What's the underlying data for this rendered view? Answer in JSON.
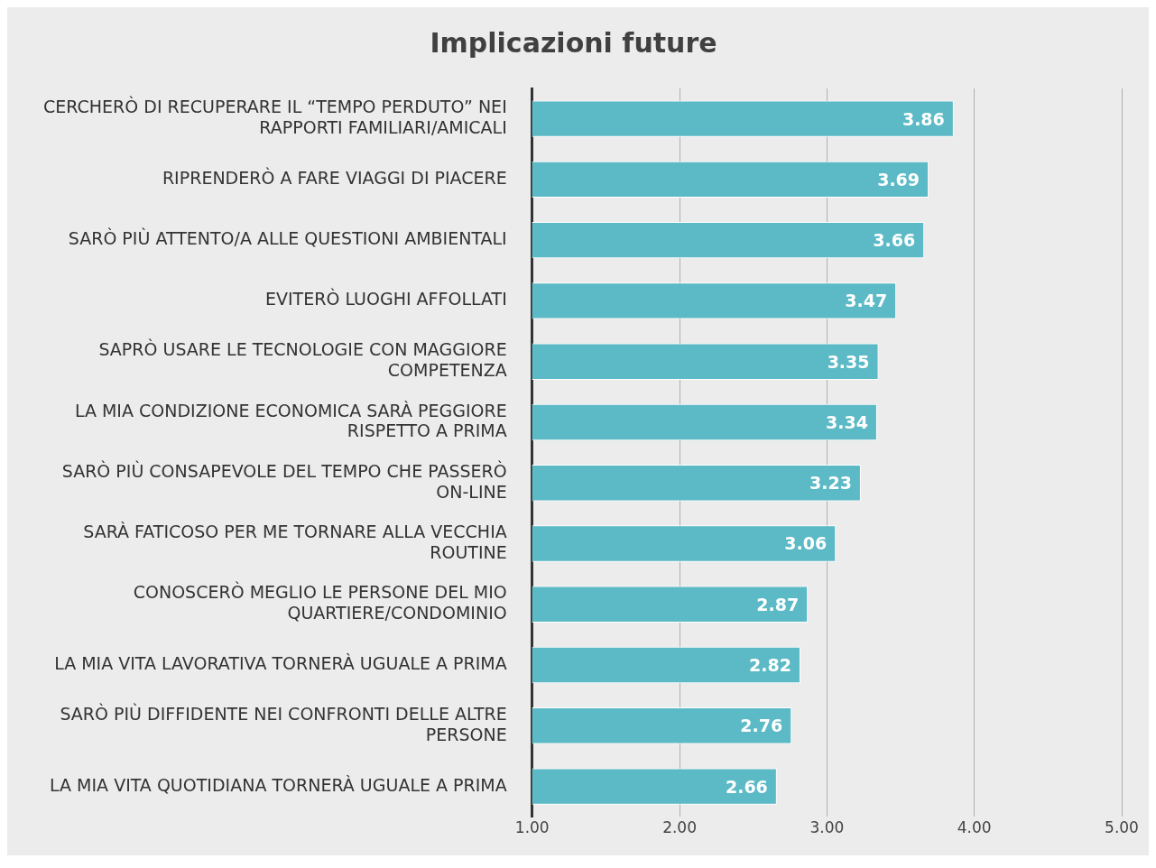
{
  "chart_data": {
    "type": "bar",
    "orientation": "horizontal",
    "title": "Implicazioni future",
    "categories": [
      "CERCHERÒ DI RECUPERARE IL “TEMPO PERDUTO” NEI RAPPORTI FAMILIARI/AMICALI",
      "RIPRENDERÒ A FARE VIAGGI DI PIACERE",
      "SARÒ PIÙ ATTENTO/A ALLE QUESTIONI AMBIENTALI",
      "EVITERÒ LUOGHI AFFOLLATI",
      "SAPRÒ USARE LE TECNOLOGIE CON MAGGIORE COMPETENZA",
      "LA MIA CONDIZIONE ECONOMICA SARÀ PEGGIORE RISPETTO A PRIMA",
      "SARÒ PIÙ CONSAPEVOLE DEL TEMPO CHE PASSERÒ ON-LINE",
      "SARÀ FATICOSO PER ME TORNARE ALLA VECCHIA ROUTINE",
      "CONOSCERÒ MEGLIO LE PERSONE DEL MIO QUARTIERE/CONDOMINIO",
      "LA MIA VITA LAVORATIVA TORNERÀ UGUALE A PRIMA",
      "SARÒ PIÙ DIFFIDENTE NEI CONFRONTI DELLE ALTRE PERSONE",
      "LA MIA VITA QUOTIDIANA TORNERÀ UGUALE A PRIMA"
    ],
    "values": [
      3.86,
      3.69,
      3.66,
      3.47,
      3.35,
      3.34,
      3.23,
      3.06,
      2.87,
      2.82,
      2.76,
      2.66
    ],
    "color": "#5bbac6",
    "xlim": [
      1,
      5
    ],
    "xticks": [
      {
        "value": 1,
        "label": "1.00"
      },
      {
        "value": 2,
        "label": "2.00"
      },
      {
        "value": 3,
        "label": "3.00"
      },
      {
        "value": 4,
        "label": "4.00"
      },
      {
        "value": 5,
        "label": "5.00"
      }
    ],
    "grid": "x",
    "data_labels": true,
    "legend": false
  }
}
